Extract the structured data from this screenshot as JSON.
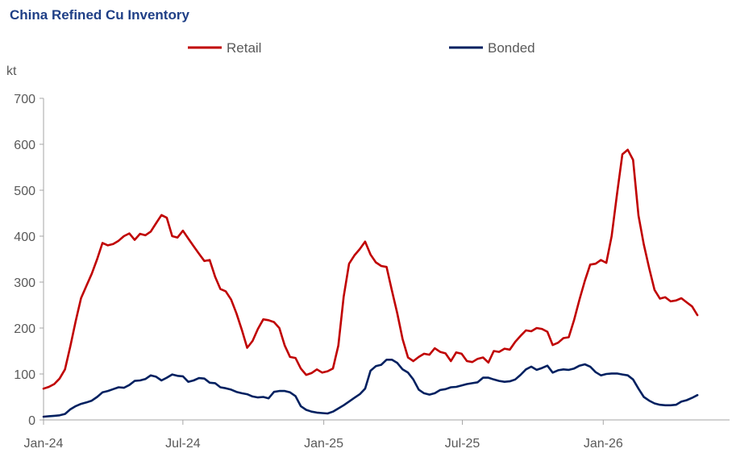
{
  "title": "China Refined Cu Inventory",
  "chart_data": {
    "type": "line",
    "title": "China Refined Cu Inventory",
    "ylabel": "kt",
    "xlabel": "",
    "ylim": [
      0,
      700
    ],
    "yticks": [
      "0",
      "100",
      "200",
      "300",
      "400",
      "500",
      "600",
      "700"
    ],
    "xticks": [
      {
        "label": "Jan-24",
        "x": "2024-01-01"
      },
      {
        "label": "Jul-24",
        "x": "2024-07-01"
      },
      {
        "label": "Jan-25",
        "x": "2025-01-01"
      },
      {
        "label": "Jul-25",
        "x": "2025-07-01"
      },
      {
        "label": "Jan-26",
        "x": "2026-01-01"
      }
    ],
    "xlim": [
      "2024-01-01",
      "2026-06-15"
    ],
    "legend_position": "top",
    "grid": false,
    "series": [
      {
        "name": "Retail",
        "color": "#c00000",
        "points": [
          [
            "2024-01-01",
            68
          ],
          [
            "2024-01-08",
            72
          ],
          [
            "2024-01-15",
            78
          ],
          [
            "2024-01-22",
            90
          ],
          [
            "2024-01-29",
            110
          ],
          [
            "2024-02-05",
            160
          ],
          [
            "2024-02-12",
            215
          ],
          [
            "2024-02-19",
            265
          ],
          [
            "2024-02-26",
            292
          ],
          [
            "2024-03-04",
            318
          ],
          [
            "2024-03-11",
            350
          ],
          [
            "2024-03-18",
            385
          ],
          [
            "2024-03-25",
            380
          ],
          [
            "2024-04-01",
            383
          ],
          [
            "2024-04-08",
            390
          ],
          [
            "2024-04-15",
            400
          ],
          [
            "2024-04-22",
            406
          ],
          [
            "2024-04-29",
            392
          ],
          [
            "2024-05-06",
            405
          ],
          [
            "2024-05-13",
            402
          ],
          [
            "2024-05-20",
            410
          ],
          [
            "2024-05-27",
            428
          ],
          [
            "2024-06-03",
            446
          ],
          [
            "2024-06-10",
            440
          ],
          [
            "2024-06-17",
            400
          ],
          [
            "2024-06-24",
            397
          ],
          [
            "2024-07-01",
            412
          ],
          [
            "2024-07-08",
            395
          ],
          [
            "2024-07-15",
            378
          ],
          [
            "2024-07-22",
            362
          ],
          [
            "2024-07-29",
            346
          ],
          [
            "2024-08-05",
            348
          ],
          [
            "2024-08-12",
            312
          ],
          [
            "2024-08-19",
            285
          ],
          [
            "2024-08-26",
            280
          ],
          [
            "2024-09-02",
            262
          ],
          [
            "2024-09-09",
            232
          ],
          [
            "2024-09-16",
            196
          ],
          [
            "2024-09-23",
            157
          ],
          [
            "2024-09-30",
            172
          ],
          [
            "2024-10-07",
            198
          ],
          [
            "2024-10-14",
            219
          ],
          [
            "2024-10-21",
            217
          ],
          [
            "2024-10-28",
            213
          ],
          [
            "2024-11-04",
            200
          ],
          [
            "2024-11-11",
            162
          ],
          [
            "2024-11-18",
            137
          ],
          [
            "2024-11-25",
            135
          ],
          [
            "2024-12-02",
            112
          ],
          [
            "2024-12-09",
            98
          ],
          [
            "2024-12-16",
            102
          ],
          [
            "2024-12-23",
            110
          ],
          [
            "2024-12-30",
            103
          ],
          [
            "2025-01-06",
            106
          ],
          [
            "2025-01-13",
            112
          ],
          [
            "2025-01-20",
            162
          ],
          [
            "2025-01-27",
            268
          ],
          [
            "2025-02-03",
            340
          ],
          [
            "2025-02-10",
            358
          ],
          [
            "2025-02-17",
            372
          ],
          [
            "2025-02-24",
            388
          ],
          [
            "2025-03-03",
            360
          ],
          [
            "2025-03-10",
            343
          ],
          [
            "2025-03-17",
            335
          ],
          [
            "2025-03-24",
            333
          ],
          [
            "2025-03-31",
            282
          ],
          [
            "2025-04-07",
            232
          ],
          [
            "2025-04-14",
            176
          ],
          [
            "2025-04-21",
            136
          ],
          [
            "2025-04-28",
            128
          ],
          [
            "2025-05-05",
            137
          ],
          [
            "2025-05-12",
            144
          ],
          [
            "2025-05-19",
            142
          ],
          [
            "2025-05-26",
            156
          ],
          [
            "2025-06-02",
            148
          ],
          [
            "2025-06-09",
            145
          ],
          [
            "2025-06-16",
            128
          ],
          [
            "2025-06-23",
            147
          ],
          [
            "2025-06-30",
            144
          ],
          [
            "2025-07-07",
            128
          ],
          [
            "2025-07-14",
            126
          ],
          [
            "2025-07-21",
            133
          ],
          [
            "2025-07-28",
            136
          ],
          [
            "2025-08-04",
            125
          ],
          [
            "2025-08-11",
            150
          ],
          [
            "2025-08-18",
            148
          ],
          [
            "2025-08-25",
            155
          ],
          [
            "2025-09-01",
            153
          ],
          [
            "2025-09-08",
            170
          ],
          [
            "2025-09-15",
            183
          ],
          [
            "2025-09-22",
            195
          ],
          [
            "2025-09-29",
            193
          ],
          [
            "2025-10-06",
            200
          ],
          [
            "2025-10-13",
            198
          ],
          [
            "2025-10-20",
            192
          ],
          [
            "2025-10-27",
            163
          ],
          [
            "2025-11-03",
            168
          ],
          [
            "2025-11-10",
            178
          ],
          [
            "2025-11-17",
            180
          ],
          [
            "2025-11-24",
            218
          ],
          [
            "2025-12-01",
            262
          ],
          [
            "2025-12-08",
            303
          ],
          [
            "2025-12-15",
            338
          ],
          [
            "2025-12-22",
            340
          ],
          [
            "2025-12-29",
            348
          ],
          [
            "2026-01-05",
            342
          ],
          [
            "2026-01-12",
            400
          ],
          [
            "2026-01-19",
            492
          ],
          [
            "2026-01-26",
            578
          ],
          [
            "2026-02-02",
            588
          ],
          [
            "2026-02-09",
            566
          ],
          [
            "2026-02-16",
            445
          ],
          [
            "2026-02-23",
            382
          ],
          [
            "2026-03-02",
            330
          ],
          [
            "2026-03-09",
            283
          ],
          [
            "2026-03-16",
            264
          ],
          [
            "2026-03-23",
            267
          ],
          [
            "2026-03-30",
            258
          ],
          [
            "2026-04-06",
            260
          ],
          [
            "2026-04-13",
            265
          ],
          [
            "2026-04-20",
            256
          ],
          [
            "2026-04-27",
            247
          ],
          [
            "2026-05-04",
            228
          ]
        ]
      },
      {
        "name": "Bonded",
        "color": "#002060",
        "points": [
          [
            "2024-01-01",
            7
          ],
          [
            "2024-01-08",
            8
          ],
          [
            "2024-01-15",
            9
          ],
          [
            "2024-01-22",
            10
          ],
          [
            "2024-01-29",
            13
          ],
          [
            "2024-02-05",
            23
          ],
          [
            "2024-02-12",
            30
          ],
          [
            "2024-02-19",
            35
          ],
          [
            "2024-02-26",
            38
          ],
          [
            "2024-03-04",
            42
          ],
          [
            "2024-03-11",
            50
          ],
          [
            "2024-03-18",
            60
          ],
          [
            "2024-03-25",
            63
          ],
          [
            "2024-04-01",
            67
          ],
          [
            "2024-04-08",
            71
          ],
          [
            "2024-04-15",
            70
          ],
          [
            "2024-04-22",
            76
          ],
          [
            "2024-04-29",
            85
          ],
          [
            "2024-05-06",
            86
          ],
          [
            "2024-05-13",
            89
          ],
          [
            "2024-05-20",
            97
          ],
          [
            "2024-05-27",
            94
          ],
          [
            "2024-06-03",
            86
          ],
          [
            "2024-06-10",
            92
          ],
          [
            "2024-06-17",
            99
          ],
          [
            "2024-06-24",
            96
          ],
          [
            "2024-07-01",
            95
          ],
          [
            "2024-07-08",
            83
          ],
          [
            "2024-07-15",
            86
          ],
          [
            "2024-07-22",
            91
          ],
          [
            "2024-07-29",
            90
          ],
          [
            "2024-08-05",
            81
          ],
          [
            "2024-08-12",
            80
          ],
          [
            "2024-08-19",
            71
          ],
          [
            "2024-08-26",
            69
          ],
          [
            "2024-09-02",
            66
          ],
          [
            "2024-09-09",
            61
          ],
          [
            "2024-09-16",
            58
          ],
          [
            "2024-09-23",
            56
          ],
          [
            "2024-09-30",
            51
          ],
          [
            "2024-10-07",
            49
          ],
          [
            "2024-10-14",
            50
          ],
          [
            "2024-10-21",
            47
          ],
          [
            "2024-10-28",
            61
          ],
          [
            "2024-11-04",
            63
          ],
          [
            "2024-11-11",
            63
          ],
          [
            "2024-11-18",
            60
          ],
          [
            "2024-11-25",
            52
          ],
          [
            "2024-12-02",
            30
          ],
          [
            "2024-12-09",
            22
          ],
          [
            "2024-12-16",
            18
          ],
          [
            "2024-12-23",
            16
          ],
          [
            "2024-12-30",
            15
          ],
          [
            "2025-01-06",
            14
          ],
          [
            "2025-01-13",
            18
          ],
          [
            "2025-01-20",
            25
          ],
          [
            "2025-01-27",
            32
          ],
          [
            "2025-02-03",
            40
          ],
          [
            "2025-02-10",
            48
          ],
          [
            "2025-02-17",
            56
          ],
          [
            "2025-02-24",
            68
          ],
          [
            "2025-03-03",
            107
          ],
          [
            "2025-03-10",
            117
          ],
          [
            "2025-03-17",
            120
          ],
          [
            "2025-03-24",
            131
          ],
          [
            "2025-03-31",
            131
          ],
          [
            "2025-04-07",
            124
          ],
          [
            "2025-04-14",
            110
          ],
          [
            "2025-04-21",
            103
          ],
          [
            "2025-04-28",
            88
          ],
          [
            "2025-05-05",
            66
          ],
          [
            "2025-05-12",
            58
          ],
          [
            "2025-05-19",
            55
          ],
          [
            "2025-05-26",
            58
          ],
          [
            "2025-06-02",
            65
          ],
          [
            "2025-06-09",
            67
          ],
          [
            "2025-06-16",
            71
          ],
          [
            "2025-06-23",
            72
          ],
          [
            "2025-06-30",
            75
          ],
          [
            "2025-07-07",
            78
          ],
          [
            "2025-07-14",
            80
          ],
          [
            "2025-07-21",
            82
          ],
          [
            "2025-07-28",
            92
          ],
          [
            "2025-08-04",
            92
          ],
          [
            "2025-08-11",
            88
          ],
          [
            "2025-08-18",
            85
          ],
          [
            "2025-08-25",
            83
          ],
          [
            "2025-09-01",
            84
          ],
          [
            "2025-09-08",
            88
          ],
          [
            "2025-09-15",
            98
          ],
          [
            "2025-09-22",
            110
          ],
          [
            "2025-09-29",
            116
          ],
          [
            "2025-10-06",
            109
          ],
          [
            "2025-10-13",
            113
          ],
          [
            "2025-10-20",
            118
          ],
          [
            "2025-10-27",
            103
          ],
          [
            "2025-11-03",
            108
          ],
          [
            "2025-11-10",
            110
          ],
          [
            "2025-11-17",
            109
          ],
          [
            "2025-11-24",
            112
          ],
          [
            "2025-12-01",
            118
          ],
          [
            "2025-12-08",
            121
          ],
          [
            "2025-12-15",
            116
          ],
          [
            "2025-12-22",
            104
          ],
          [
            "2025-12-29",
            97
          ],
          [
            "2026-01-05",
            100
          ],
          [
            "2026-01-12",
            101
          ],
          [
            "2026-01-19",
            101
          ],
          [
            "2026-01-26",
            99
          ],
          [
            "2026-02-02",
            97
          ],
          [
            "2026-02-09",
            88
          ],
          [
            "2026-02-16",
            68
          ],
          [
            "2026-02-23",
            50
          ],
          [
            "2026-03-02",
            42
          ],
          [
            "2026-03-09",
            36
          ],
          [
            "2026-03-16",
            33
          ],
          [
            "2026-03-23",
            32
          ],
          [
            "2026-03-30",
            32
          ],
          [
            "2026-04-06",
            33
          ],
          [
            "2026-04-13",
            40
          ],
          [
            "2026-04-20",
            43
          ],
          [
            "2026-04-27",
            48
          ],
          [
            "2026-05-04",
            54
          ]
        ]
      }
    ]
  }
}
